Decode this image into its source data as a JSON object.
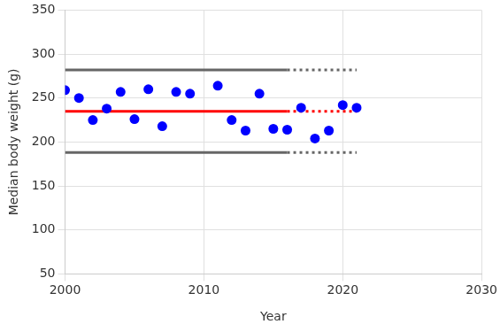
{
  "chart_data": {
    "type": "scatter",
    "x_label": "Year",
    "y_label": "Median body weight (g)",
    "xlim": [
      2000,
      2030
    ],
    "xticks": [
      2000,
      2010,
      2020,
      2030
    ],
    "ylim": [
      50,
      350
    ],
    "yticks": [
      50,
      100,
      150,
      200,
      250,
      300,
      350
    ],
    "grid": true,
    "series": [
      {
        "type": "scatter",
        "color": "#0000ff",
        "marker": "circle",
        "x": [
          2000,
          2001,
          2002,
          2003,
          2004,
          2005,
          2006,
          2007,
          2008,
          2009,
          2011,
          2012,
          2013,
          2014,
          2015,
          2016,
          2017,
          2018,
          2019,
          2020,
          2021
        ],
        "values": [
          259,
          250,
          225,
          238,
          257,
          226,
          260,
          218,
          257,
          255,
          264,
          225,
          213,
          255,
          215,
          214,
          239,
          204,
          213,
          242,
          239
        ]
      },
      {
        "type": "line",
        "color": "#ff0000",
        "line_style": "solid",
        "x": [
          2000,
          2016
        ],
        "values": [
          235,
          235
        ]
      },
      {
        "type": "line",
        "color": "#ff0000",
        "line_style": "dotted",
        "x": [
          2016,
          2021
        ],
        "values": [
          235,
          235
        ]
      },
      {
        "type": "line",
        "color": "#666666",
        "line_style": "solid",
        "x": [
          2000,
          2016
        ],
        "values": [
          282,
          282
        ]
      },
      {
        "type": "line",
        "color": "#666666",
        "line_style": "dotted",
        "x": [
          2016,
          2021
        ],
        "values": [
          282,
          282
        ]
      },
      {
        "type": "line",
        "color": "#666666",
        "line_style": "solid",
        "x": [
          2000,
          2016
        ],
        "values": [
          188,
          188
        ]
      },
      {
        "type": "line",
        "color": "#666666",
        "line_style": "dotted",
        "x": [
          2016,
          2021
        ],
        "values": [
          188,
          188
        ]
      }
    ]
  }
}
